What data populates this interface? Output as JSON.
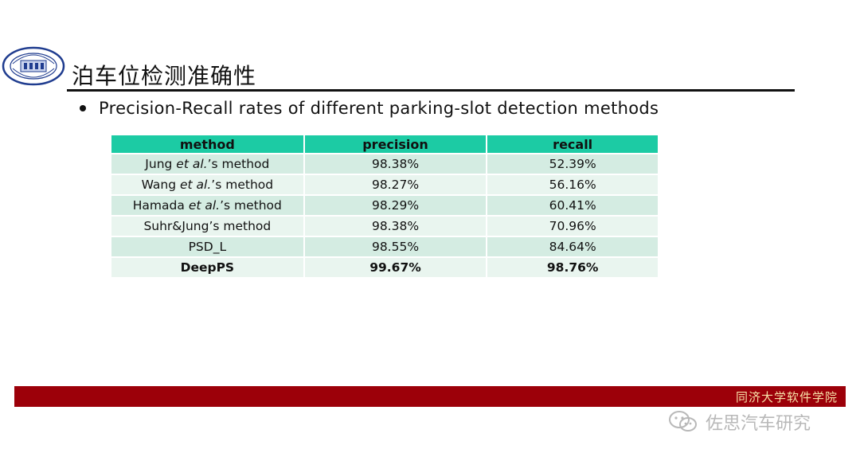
{
  "slide": {
    "title": "泊车位检测准确性",
    "bullet": "Precision-Recall rates of different parking-slot detection methods"
  },
  "table": {
    "headers": [
      "method",
      "precision",
      "recall"
    ],
    "rows": [
      {
        "method_name": "Jung",
        "method_italic": "et al.",
        "method_suffix": "’s method",
        "precision": "98.38%",
        "recall": "52.39%"
      },
      {
        "method_name": "Wang",
        "method_italic": "et al.",
        "method_suffix": "’s method",
        "precision": "98.27%",
        "recall": "56.16%"
      },
      {
        "method_name": "Hamada",
        "method_italic": "et al.",
        "method_suffix": "’s method",
        "precision": "98.29%",
        "recall": "60.41%"
      },
      {
        "method_name": "Suhr&Jung’s method",
        "method_italic": "",
        "method_suffix": "",
        "precision": "98.38%",
        "recall": "70.96%"
      },
      {
        "method_name": "PSD_L",
        "method_italic": "",
        "method_suffix": "",
        "precision": "98.55%",
        "recall": "84.64%"
      },
      {
        "method_name": "DeepPS",
        "method_italic": "",
        "method_suffix": "",
        "precision": "99.67%",
        "recall": "98.76%"
      }
    ]
  },
  "footer": {
    "institution": "同济大学软件学院"
  },
  "watermark": {
    "text": "佐思汽车研究",
    "icon": "wechat-icon"
  },
  "logo": {
    "icon": "university-seal-icon"
  },
  "colors": {
    "header_bg": "#1ccba4",
    "row_odd": "#d4ece2",
    "row_even": "#e9f5ef",
    "footer_band": "#9c0009",
    "footer_text": "#f7e0a8"
  }
}
